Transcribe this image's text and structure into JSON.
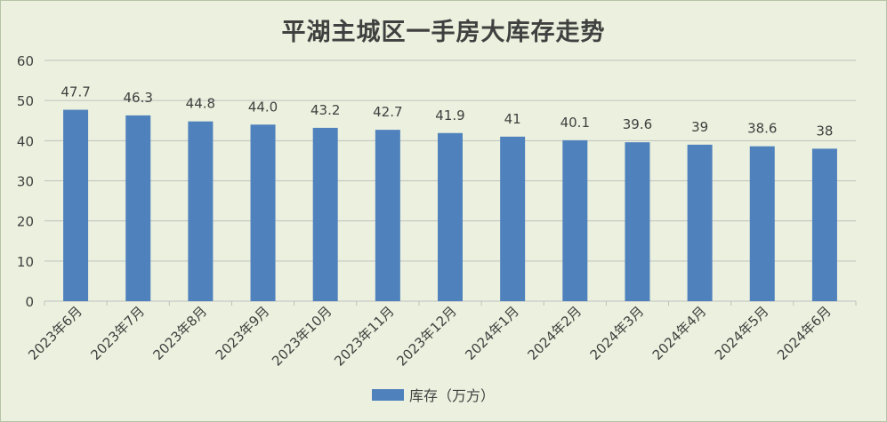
{
  "chart_data": {
    "type": "bar",
    "title": "平湖主城区一手房大库存走势",
    "categories": [
      "2023年6月",
      "2023年7月",
      "2023年8月",
      "2023年9月",
      "2023年10月",
      "2023年11月",
      "2023年12月",
      "2024年1月",
      "2024年2月",
      "2024年3月",
      "2024年4月",
      "2024年5月",
      "2024年6月"
    ],
    "series": [
      {
        "name": "库存（万方）",
        "values": [
          47.7,
          46.3,
          44.8,
          44.0,
          43.2,
          42.7,
          41.9,
          41,
          40.1,
          39.6,
          39,
          38.6,
          38
        ],
        "labels": [
          "47.7",
          "46.3",
          "44.8",
          "44.0",
          "43.2",
          "42.7",
          "41.9",
          "41",
          "40.1",
          "39.6",
          "39",
          "38.6",
          "38"
        ],
        "color": "#4f81bd"
      }
    ],
    "ylim": [
      0,
      60
    ],
    "yticks": [
      "0",
      "10",
      "20",
      "30",
      "40",
      "50",
      "60"
    ],
    "grid": true,
    "legend": "bottom",
    "xlabel": "",
    "ylabel": ""
  }
}
